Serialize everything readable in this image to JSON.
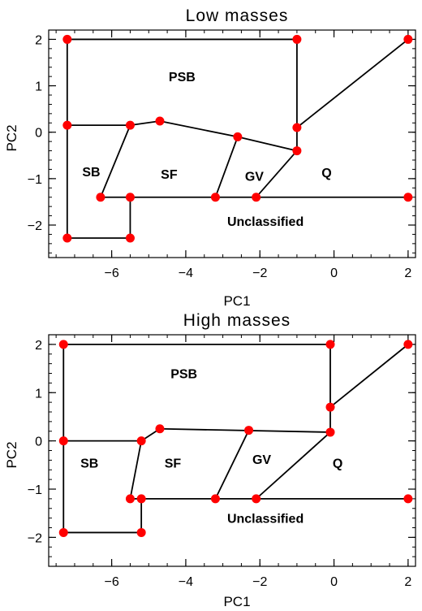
{
  "chart_data": [
    {
      "type": "scatter",
      "title": "Low masses",
      "xlabel": "PC1",
      "ylabel": "PC2",
      "xlim": [
        -7.7,
        2.2
      ],
      "ylim": [
        -2.7,
        2.2
      ],
      "x_ticks": [
        -6,
        -4,
        -2,
        0,
        2
      ],
      "y_ticks": [
        -2,
        -1,
        0,
        1,
        2
      ],
      "x_tick_labels": [
        "−6",
        "−4",
        "−2",
        "0",
        "2"
      ],
      "y_tick_labels": [
        "−2",
        "−1",
        "0",
        "1",
        "2"
      ],
      "points": [
        {
          "x": -7.2,
          "y": 2.0
        },
        {
          "x": -1.0,
          "y": 2.0
        },
        {
          "x": 2.0,
          "y": 2.0
        },
        {
          "x": -7.2,
          "y": 0.15
        },
        {
          "x": -5.5,
          "y": 0.15
        },
        {
          "x": -4.7,
          "y": 0.24
        },
        {
          "x": -2.6,
          "y": -0.1
        },
        {
          "x": -1.0,
          "y": 0.1
        },
        {
          "x": -1.0,
          "y": -0.4
        },
        {
          "x": -6.3,
          "y": -1.4
        },
        {
          "x": -5.5,
          "y": -1.4
        },
        {
          "x": -3.2,
          "y": -1.4
        },
        {
          "x": -2.1,
          "y": -1.4
        },
        {
          "x": 2.0,
          "y": -1.4
        },
        {
          "x": -7.2,
          "y": -2.28
        },
        {
          "x": -5.5,
          "y": -2.28
        }
      ],
      "segments": [
        [
          [
            -7.2,
            -2.28
          ],
          [
            -7.2,
            2.0
          ]
        ],
        [
          [
            -7.2,
            2.0
          ],
          [
            -1.0,
            2.0
          ]
        ],
        [
          [
            -1.0,
            2.0
          ],
          [
            -1.0,
            -0.4
          ]
        ],
        [
          [
            -1.0,
            0.1
          ],
          [
            2.0,
            2.0
          ]
        ],
        [
          [
            -7.2,
            0.15
          ],
          [
            -5.5,
            0.15
          ]
        ],
        [
          [
            -5.5,
            0.15
          ],
          [
            -4.7,
            0.24
          ]
        ],
        [
          [
            -4.7,
            0.24
          ],
          [
            -2.6,
            -0.1
          ]
        ],
        [
          [
            -2.6,
            -0.1
          ],
          [
            -1.0,
            -0.4
          ]
        ],
        [
          [
            -5.5,
            0.15
          ],
          [
            -6.3,
            -1.4
          ]
        ],
        [
          [
            -2.6,
            -0.1
          ],
          [
            -3.2,
            -1.4
          ]
        ],
        [
          [
            -1.0,
            -0.4
          ],
          [
            -2.1,
            -1.4
          ]
        ],
        [
          [
            -6.3,
            -1.4
          ],
          [
            2.0,
            -1.4
          ]
        ],
        [
          [
            -5.5,
            -1.4
          ],
          [
            -5.5,
            -2.28
          ]
        ],
        [
          [
            -7.2,
            -2.28
          ],
          [
            -5.5,
            -2.28
          ]
        ]
      ],
      "annotations": [
        {
          "text": "PSB",
          "x": -4.1,
          "y": 1.1
        },
        {
          "text": "SB",
          "x": -6.55,
          "y": -0.95
        },
        {
          "text": "SF",
          "x": -4.45,
          "y": -1.0
        },
        {
          "text": "GV",
          "x": -2.15,
          "y": -1.05
        },
        {
          "text": "Q",
          "x": -0.2,
          "y": -0.97
        },
        {
          "text": "Unclassified",
          "x": -1.85,
          "y": -2.02
        }
      ],
      "marker_color": "#ff0000",
      "line_color": "#000000",
      "grid": false
    },
    {
      "type": "scatter",
      "title": "High masses",
      "xlabel": "PC1",
      "ylabel": "PC2",
      "xlim": [
        -7.7,
        2.2
      ],
      "ylim": [
        -2.6,
        2.2
      ],
      "x_ticks": [
        -6,
        -4,
        -2,
        0,
        2
      ],
      "y_ticks": [
        -2,
        -1,
        0,
        1,
        2
      ],
      "x_tick_labels": [
        "−6",
        "−4",
        "−2",
        "0",
        "2"
      ],
      "y_tick_labels": [
        "−2",
        "−1",
        "0",
        "1",
        "2"
      ],
      "points": [
        {
          "x": -7.3,
          "y": 2.0
        },
        {
          "x": -0.1,
          "y": 2.0
        },
        {
          "x": 2.0,
          "y": 2.0
        },
        {
          "x": -0.1,
          "y": 0.7
        },
        {
          "x": -4.7,
          "y": 0.25
        },
        {
          "x": -2.3,
          "y": 0.22
        },
        {
          "x": -0.1,
          "y": 0.18
        },
        {
          "x": -7.3,
          "y": 0.0
        },
        {
          "x": -5.2,
          "y": 0.0
        },
        {
          "x": -5.5,
          "y": -1.2
        },
        {
          "x": -5.2,
          "y": -1.2
        },
        {
          "x": -3.2,
          "y": -1.2
        },
        {
          "x": -2.1,
          "y": -1.2
        },
        {
          "x": 2.0,
          "y": -1.2
        },
        {
          "x": -7.3,
          "y": -1.9
        },
        {
          "x": -5.2,
          "y": -1.9
        }
      ],
      "segments": [
        [
          [
            -7.3,
            -1.9
          ],
          [
            -7.3,
            2.0
          ]
        ],
        [
          [
            -7.3,
            2.0
          ],
          [
            -0.1,
            2.0
          ]
        ],
        [
          [
            -0.1,
            2.0
          ],
          [
            -0.1,
            0.18
          ]
        ],
        [
          [
            -0.1,
            0.7
          ],
          [
            2.0,
            2.0
          ]
        ],
        [
          [
            -7.3,
            0.0
          ],
          [
            -5.2,
            0.0
          ]
        ],
        [
          [
            -5.2,
            0.0
          ],
          [
            -4.7,
            0.25
          ]
        ],
        [
          [
            -4.7,
            0.25
          ],
          [
            -0.1,
            0.18
          ]
        ],
        [
          [
            -5.2,
            0.0
          ],
          [
            -5.5,
            -1.2
          ]
        ],
        [
          [
            -2.3,
            0.22
          ],
          [
            -3.2,
            -1.2
          ]
        ],
        [
          [
            -0.1,
            0.18
          ],
          [
            -2.1,
            -1.2
          ]
        ],
        [
          [
            -5.5,
            -1.2
          ],
          [
            2.0,
            -1.2
          ]
        ],
        [
          [
            -5.2,
            -1.2
          ],
          [
            -5.2,
            -1.9
          ]
        ],
        [
          [
            -7.3,
            -1.9
          ],
          [
            -5.2,
            -1.9
          ]
        ]
      ],
      "annotations": [
        {
          "text": "PSB",
          "x": -4.05,
          "y": 1.3
        },
        {
          "text": "SB",
          "x": -6.6,
          "y": -0.55
        },
        {
          "text": "SF",
          "x": -4.35,
          "y": -0.55
        },
        {
          "text": "GV",
          "x": -1.95,
          "y": -0.48
        },
        {
          "text": "Q",
          "x": 0.1,
          "y": -0.55
        },
        {
          "text": "Unclassified",
          "x": -1.85,
          "y": -1.7
        }
      ],
      "marker_color": "#ff0000",
      "line_color": "#000000",
      "grid": false
    }
  ]
}
